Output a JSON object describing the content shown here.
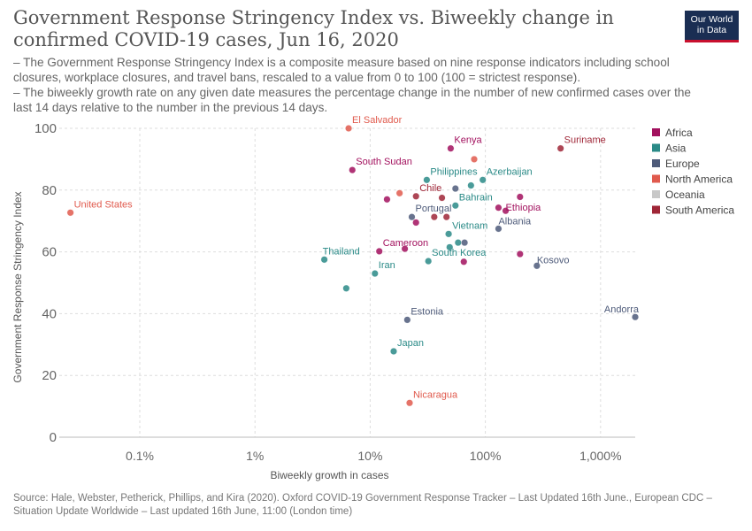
{
  "title": "Government Response Stringency Index vs. Biweekly change in confirmed COVID-19 cases, Jun 16, 2020",
  "subtitle_lines": [
    "– The Government Response Stringency Index is a composite measure based on nine response indicators including school closures, workplace closures, and travel bans, rescaled to a value from 0 to 100 (100 = strictest response).",
    "– The biweekly growth rate on any given date measures the percentage change in the number of new confirmed cases over the last 14 days relative to the number in the previous 14 days."
  ],
  "logo_text": [
    "Our World",
    "in Data"
  ],
  "source": "Source: Hale, Webster, Petherick, Phillips, and Kira (2020). Oxford COVID-19 Government Response Tracker – Last Updated 16th June., European CDC – Situation Update Worldwide – Last updated 16th June, 11:00 (London time)",
  "colors": {
    "Africa": "#a2115e",
    "Asia": "#2a8a87",
    "Europe": "#4e5b7a",
    "North America": "#e05a4d",
    "Oceania": "#c8c8c8",
    "South America": "#9f2637"
  },
  "chart_data": {
    "type": "scatter",
    "xlabel": "Biweekly growth in cases",
    "ylabel": "Government Response Stringency Index",
    "xscale": "log",
    "xlim": [
      0.02,
      2000
    ],
    "ylim": [
      0,
      100
    ],
    "x_ticks": [
      0.1,
      1,
      10,
      100,
      1000
    ],
    "x_tick_labels": [
      "0.1%",
      "1%",
      "10%",
      "100%",
      "1,000%"
    ],
    "y_ticks": [
      0,
      20,
      40,
      60,
      80,
      100
    ],
    "grid": true,
    "legend": {
      "position": "right",
      "entries": [
        "Africa",
        "Asia",
        "Europe",
        "North America",
        "Oceania",
        "South America"
      ]
    },
    "points": [
      {
        "x": 0.025,
        "y": 72.7,
        "region": "North America",
        "label": "United States"
      },
      {
        "x": 6.5,
        "y": 100,
        "region": "North America",
        "label": "El Salvador"
      },
      {
        "x": 7,
        "y": 86.5,
        "region": "Africa",
        "label": "South Sudan"
      },
      {
        "x": 50,
        "y": 93.5,
        "region": "Africa",
        "label": "Kenya"
      },
      {
        "x": 450,
        "y": 93.5,
        "region": "South America",
        "label": "Suriname"
      },
      {
        "x": 80,
        "y": 90,
        "region": "North America",
        "label": ""
      },
      {
        "x": 31,
        "y": 83.3,
        "region": "Asia",
        "label": "Philippines"
      },
      {
        "x": 95,
        "y": 83.3,
        "region": "Asia",
        "label": "Azerbaijan"
      },
      {
        "x": 75,
        "y": 81.5,
        "region": "Asia",
        "label": ""
      },
      {
        "x": 55,
        "y": 80.5,
        "region": "Europe",
        "label": ""
      },
      {
        "x": 18,
        "y": 79,
        "region": "North America",
        "label": ""
      },
      {
        "x": 25,
        "y": 78,
        "region": "South America",
        "label": "Chile"
      },
      {
        "x": 42,
        "y": 77.5,
        "region": "South America",
        "label": ""
      },
      {
        "x": 14,
        "y": 77,
        "region": "Africa",
        "label": ""
      },
      {
        "x": 200,
        "y": 77.8,
        "region": "Africa",
        "label": ""
      },
      {
        "x": 55,
        "y": 75,
        "region": "Asia",
        "label": "Bahrain"
      },
      {
        "x": 130,
        "y": 74.3,
        "region": "Africa",
        "label": ""
      },
      {
        "x": 150,
        "y": 73.3,
        "region": "Africa",
        "label": "Ethiopia"
      },
      {
        "x": 23,
        "y": 71.3,
        "region": "Europe",
        "label": "Portugal"
      },
      {
        "x": 36,
        "y": 71.3,
        "region": "South America",
        "label": ""
      },
      {
        "x": 46,
        "y": 71.3,
        "region": "South America",
        "label": ""
      },
      {
        "x": 25,
        "y": 69.5,
        "region": "Africa",
        "label": ""
      },
      {
        "x": 130,
        "y": 67.5,
        "region": "Europe",
        "label": "Albania"
      },
      {
        "x": 48,
        "y": 65.8,
        "region": "Asia",
        "label": "Vietnam"
      },
      {
        "x": 58,
        "y": 63,
        "region": "Asia",
        "label": ""
      },
      {
        "x": 66,
        "y": 63,
        "region": "Europe",
        "label": ""
      },
      {
        "x": 49,
        "y": 61.5,
        "region": "Asia",
        "label": ""
      },
      {
        "x": 12,
        "y": 60.2,
        "region": "Africa",
        "label": "Cameroon"
      },
      {
        "x": 20,
        "y": 61,
        "region": "Africa",
        "label": ""
      },
      {
        "x": 200,
        "y": 59.3,
        "region": "Africa",
        "label": ""
      },
      {
        "x": 4,
        "y": 57.5,
        "region": "Asia",
        "label": "Thailand"
      },
      {
        "x": 32,
        "y": 57,
        "region": "Asia",
        "label": "South Korea"
      },
      {
        "x": 65,
        "y": 56.8,
        "region": "Africa",
        "label": ""
      },
      {
        "x": 280,
        "y": 55.5,
        "region": "Europe",
        "label": "Kosovo"
      },
      {
        "x": 11,
        "y": 53,
        "region": "Asia",
        "label": "Iran"
      },
      {
        "x": 6.2,
        "y": 48.2,
        "region": "Asia",
        "label": ""
      },
      {
        "x": 2000,
        "y": 38.9,
        "region": "Europe",
        "label": "Andorra"
      },
      {
        "x": 21,
        "y": 38,
        "region": "Europe",
        "label": "Estonia"
      },
      {
        "x": 16,
        "y": 27.8,
        "region": "Asia",
        "label": "Japan"
      },
      {
        "x": 22,
        "y": 11.1,
        "region": "North America",
        "label": "Nicaragua"
      }
    ]
  }
}
